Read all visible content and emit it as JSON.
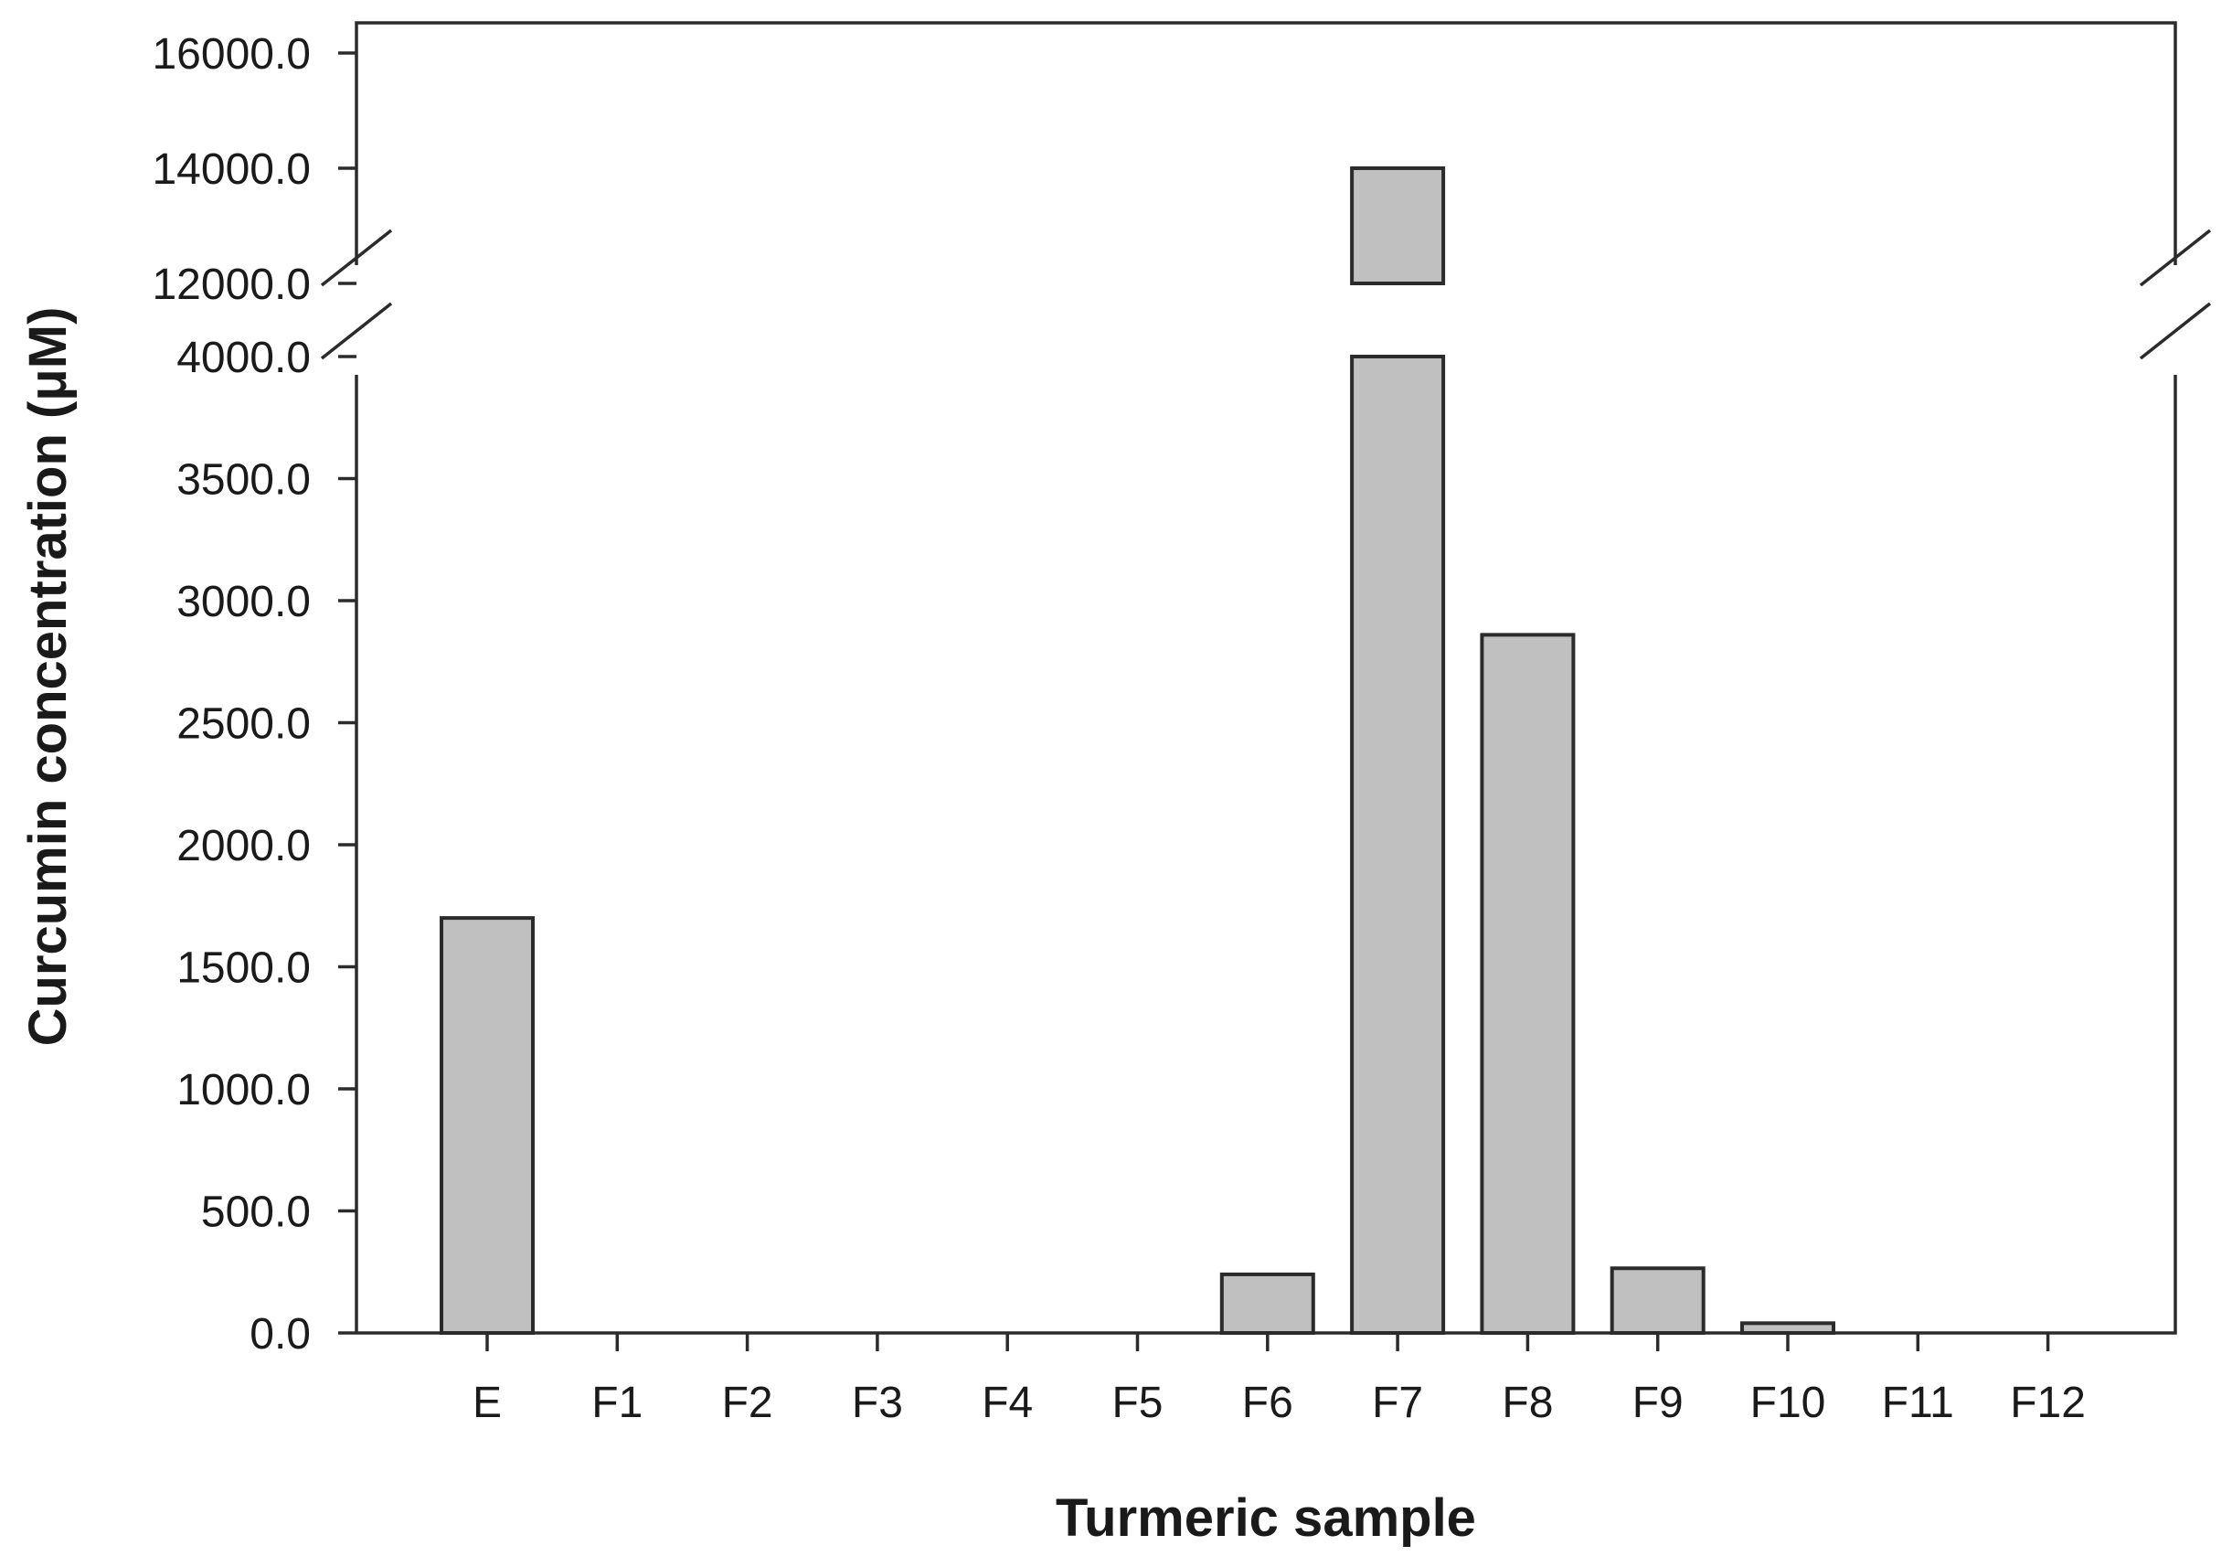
{
  "chart_data": {
    "type": "bar",
    "xlabel": "Turmeric sample",
    "ylabel": "Curcumin concentration (μM)",
    "categories": [
      "E",
      "F1",
      "F2",
      "F3",
      "F4",
      "F5",
      "F6",
      "F7",
      "F8",
      "F9",
      "F10",
      "F11",
      "F12"
    ],
    "values": [
      1700,
      0,
      0,
      0,
      0,
      0,
      240,
      14000,
      2860,
      265,
      40,
      0,
      0
    ],
    "y_axis_break": {
      "from": 4000,
      "to": 12000
    },
    "ylim_lower": [
      0,
      4000
    ],
    "ylim_upper": [
      12000,
      16000
    ],
    "yticks_lower": [
      "0.0",
      "500.0",
      "1000.0",
      "1500.0",
      "2000.0",
      "2500.0",
      "3000.0",
      "3500.0",
      "4000.0"
    ],
    "yticks_upper": [
      "12000.0",
      "14000.0",
      "16000.0"
    ],
    "bar_color": "#c0c0c0",
    "grid": false,
    "legend": "none"
  }
}
